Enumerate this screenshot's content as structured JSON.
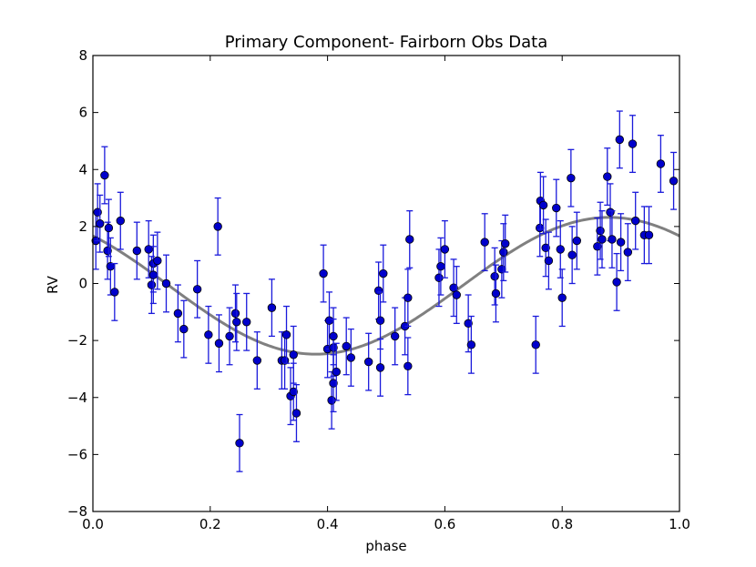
{
  "chart_data": {
    "type": "scatter",
    "title": "Primary Component- Fairborn Obs Data",
    "xlabel": "phase",
    "ylabel": "RV",
    "xlim": [
      0.0,
      1.0
    ],
    "ylim": [
      -8,
      8
    ],
    "x_ticks": [
      "0.0",
      "0.2",
      "0.4",
      "0.6",
      "0.8",
      "1.0"
    ],
    "y_ticks": [
      "−8",
      "−6",
      "−4",
      "−2",
      "0",
      "2",
      "4",
      "6",
      "8"
    ],
    "grid": false,
    "legend": "none",
    "colors": {
      "points": "#0000cc",
      "errorbars": "#1a1adb",
      "fit": "#808080"
    },
    "series": [
      {
        "kind": "points-with-errorbars",
        "points": [
          {
            "x": 0.005,
            "y": 1.5,
            "err": 1.0
          },
          {
            "x": 0.008,
            "y": 2.5,
            "err": 1.0
          },
          {
            "x": 0.012,
            "y": 2.1,
            "err": 1.0
          },
          {
            "x": 0.02,
            "y": 3.8,
            "err": 1.0
          },
          {
            "x": 0.025,
            "y": 1.15,
            "err": 1.0
          },
          {
            "x": 0.027,
            "y": 1.95,
            "err": 1.0
          },
          {
            "x": 0.03,
            "y": 0.6,
            "err": 1.0
          },
          {
            "x": 0.037,
            "y": -0.3,
            "err": 1.0
          },
          {
            "x": 0.047,
            "y": 2.2,
            "err": 1.0
          },
          {
            "x": 0.075,
            "y": 1.15,
            "err": 1.0
          },
          {
            "x": 0.095,
            "y": 1.2,
            "err": 1.0
          },
          {
            "x": 0.1,
            "y": -0.05,
            "err": 1.0
          },
          {
            "x": 0.103,
            "y": 0.7,
            "err": 1.0
          },
          {
            "x": 0.103,
            "y": 0.3,
            "err": 1.0
          },
          {
            "x": 0.11,
            "y": 0.8,
            "err": 1.0
          },
          {
            "x": 0.125,
            "y": 0.0,
            "err": 1.0
          },
          {
            "x": 0.145,
            "y": -1.05,
            "err": 1.0
          },
          {
            "x": 0.155,
            "y": -1.6,
            "err": 1.0
          },
          {
            "x": 0.178,
            "y": -0.2,
            "err": 1.0
          },
          {
            "x": 0.197,
            "y": -1.8,
            "err": 1.0
          },
          {
            "x": 0.213,
            "y": 2.0,
            "err": 1.0
          },
          {
            "x": 0.215,
            "y": -2.1,
            "err": 1.0
          },
          {
            "x": 0.233,
            "y": -1.85,
            "err": 1.0
          },
          {
            "x": 0.243,
            "y": -1.05,
            "err": 1.0
          },
          {
            "x": 0.245,
            "y": -1.35,
            "err": 1.0
          },
          {
            "x": 0.25,
            "y": -5.6,
            "err": 1.0
          },
          {
            "x": 0.262,
            "y": -1.35,
            "err": 1.0
          },
          {
            "x": 0.28,
            "y": -2.7,
            "err": 1.0
          },
          {
            "x": 0.305,
            "y": -0.85,
            "err": 1.0
          },
          {
            "x": 0.322,
            "y": -2.7,
            "err": 1.0
          },
          {
            "x": 0.327,
            "y": -2.7,
            "err": 1.0
          },
          {
            "x": 0.33,
            "y": -1.8,
            "err": 1.0
          },
          {
            "x": 0.337,
            "y": -3.95,
            "err": 1.0
          },
          {
            "x": 0.342,
            "y": -3.8,
            "err": 1.0
          },
          {
            "x": 0.342,
            "y": -2.5,
            "err": 1.0
          },
          {
            "x": 0.347,
            "y": -4.55,
            "err": 1.0
          },
          {
            "x": 0.393,
            "y": 0.35,
            "err": 1.0
          },
          {
            "x": 0.4,
            "y": -2.3,
            "err": 1.0
          },
          {
            "x": 0.403,
            "y": -1.3,
            "err": 1.0
          },
          {
            "x": 0.407,
            "y": -4.1,
            "err": 1.0
          },
          {
            "x": 0.41,
            "y": -3.5,
            "err": 1.0
          },
          {
            "x": 0.41,
            "y": -2.25,
            "err": 1.0
          },
          {
            "x": 0.41,
            "y": -1.85,
            "err": 1.0
          },
          {
            "x": 0.415,
            "y": -3.1,
            "err": 1.0
          },
          {
            "x": 0.432,
            "y": -2.2,
            "err": 1.0
          },
          {
            "x": 0.44,
            "y": -2.6,
            "err": 1.0
          },
          {
            "x": 0.47,
            "y": -2.75,
            "err": 1.0
          },
          {
            "x": 0.487,
            "y": -0.25,
            "err": 1.0
          },
          {
            "x": 0.49,
            "y": -2.95,
            "err": 1.0
          },
          {
            "x": 0.49,
            "y": -1.3,
            "err": 1.0
          },
          {
            "x": 0.495,
            "y": 0.35,
            "err": 1.0
          },
          {
            "x": 0.515,
            "y": -1.85,
            "err": 1.0
          },
          {
            "x": 0.532,
            "y": -1.5,
            "err": 1.0
          },
          {
            "x": 0.537,
            "y": -2.9,
            "err": 1.0
          },
          {
            "x": 0.537,
            "y": -0.5,
            "err": 1.0
          },
          {
            "x": 0.54,
            "y": 1.55,
            "err": 1.0
          },
          {
            "x": 0.59,
            "y": 0.2,
            "err": 1.0
          },
          {
            "x": 0.593,
            "y": 0.6,
            "err": 1.0
          },
          {
            "x": 0.6,
            "y": 1.2,
            "err": 1.0
          },
          {
            "x": 0.615,
            "y": -0.15,
            "err": 1.0
          },
          {
            "x": 0.62,
            "y": -0.4,
            "err": 1.0
          },
          {
            "x": 0.64,
            "y": -1.4,
            "err": 1.0
          },
          {
            "x": 0.645,
            "y": -2.15,
            "err": 1.0
          },
          {
            "x": 0.668,
            "y": 1.45,
            "err": 1.0
          },
          {
            "x": 0.685,
            "y": 0.25,
            "err": 1.0
          },
          {
            "x": 0.687,
            "y": -0.35,
            "err": 1.0
          },
          {
            "x": 0.697,
            "y": 0.5,
            "err": 1.0
          },
          {
            "x": 0.7,
            "y": 1.1,
            "err": 1.0
          },
          {
            "x": 0.703,
            "y": 1.4,
            "err": 1.0
          },
          {
            "x": 0.755,
            "y": -2.15,
            "err": 1.0
          },
          {
            "x": 0.762,
            "y": 1.95,
            "err": 1.0
          },
          {
            "x": 0.763,
            "y": 2.9,
            "err": 1.0
          },
          {
            "x": 0.768,
            "y": 2.75,
            "err": 1.0
          },
          {
            "x": 0.772,
            "y": 1.25,
            "err": 1.0
          },
          {
            "x": 0.777,
            "y": 0.8,
            "err": 1.0
          },
          {
            "x": 0.79,
            "y": 2.65,
            "err": 1.0
          },
          {
            "x": 0.797,
            "y": 1.2,
            "err": 1.0
          },
          {
            "x": 0.8,
            "y": -0.5,
            "err": 1.0
          },
          {
            "x": 0.815,
            "y": 3.7,
            "err": 1.0
          },
          {
            "x": 0.817,
            "y": 1.0,
            "err": 1.0
          },
          {
            "x": 0.825,
            "y": 1.5,
            "err": 1.0
          },
          {
            "x": 0.86,
            "y": 1.3,
            "err": 1.0
          },
          {
            "x": 0.865,
            "y": 1.85,
            "err": 1.0
          },
          {
            "x": 0.868,
            "y": 1.55,
            "err": 1.0
          },
          {
            "x": 0.877,
            "y": 3.75,
            "err": 1.0
          },
          {
            "x": 0.882,
            "y": 2.5,
            "err": 1.0
          },
          {
            "x": 0.885,
            "y": 1.55,
            "err": 1.0
          },
          {
            "x": 0.893,
            "y": 0.05,
            "err": 1.0
          },
          {
            "x": 0.898,
            "y": 5.05,
            "err": 1.0
          },
          {
            "x": 0.9,
            "y": 1.45,
            "err": 1.0
          },
          {
            "x": 0.912,
            "y": 1.1,
            "err": 1.0
          },
          {
            "x": 0.92,
            "y": 4.9,
            "err": 1.0
          },
          {
            "x": 0.925,
            "y": 2.2,
            "err": 1.0
          },
          {
            "x": 0.94,
            "y": 1.7,
            "err": 1.0
          },
          {
            "x": 0.948,
            "y": 1.7,
            "err": 1.0
          },
          {
            "x": 0.968,
            "y": 4.2,
            "err": 1.0
          },
          {
            "x": 0.99,
            "y": 3.6,
            "err": 1.0
          }
        ]
      },
      {
        "kind": "fit-curve",
        "function": "sinusoid",
        "amplitude": 2.4,
        "offset": -0.08,
        "peak_phase": 0.88
      }
    ]
  }
}
